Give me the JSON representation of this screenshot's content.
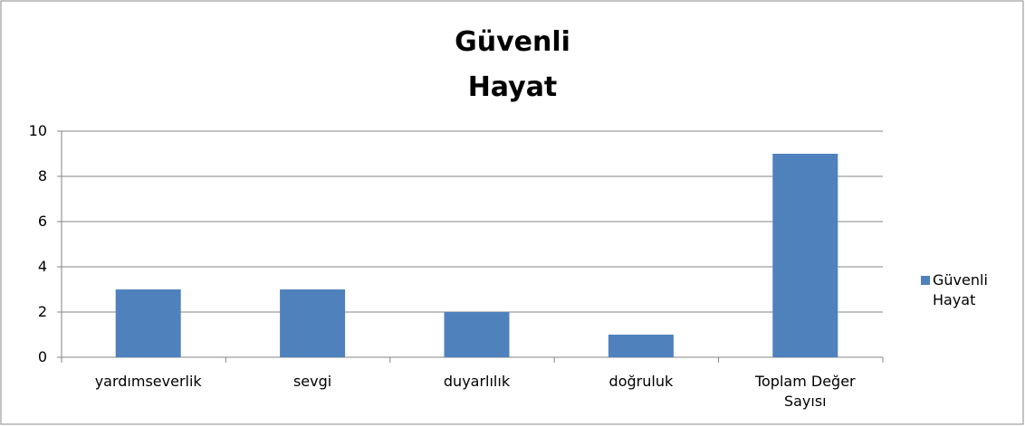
{
  "chart_data": {
    "type": "bar",
    "title": "Güvenli Hayat",
    "categories": [
      "yardımseverlik",
      "sevgi",
      "duyarlılık",
      "doğruluk",
      "Toplam Değer Sayısı"
    ],
    "series": [
      {
        "name": "Güvenli Hayat",
        "color": "#4f81bd",
        "values": [
          3,
          3,
          2,
          1,
          9
        ]
      }
    ],
    "ylim": [
      0,
      10
    ],
    "yticks": [
      0,
      2,
      4,
      6,
      8,
      10
    ],
    "grid": true,
    "legend": "right"
  }
}
